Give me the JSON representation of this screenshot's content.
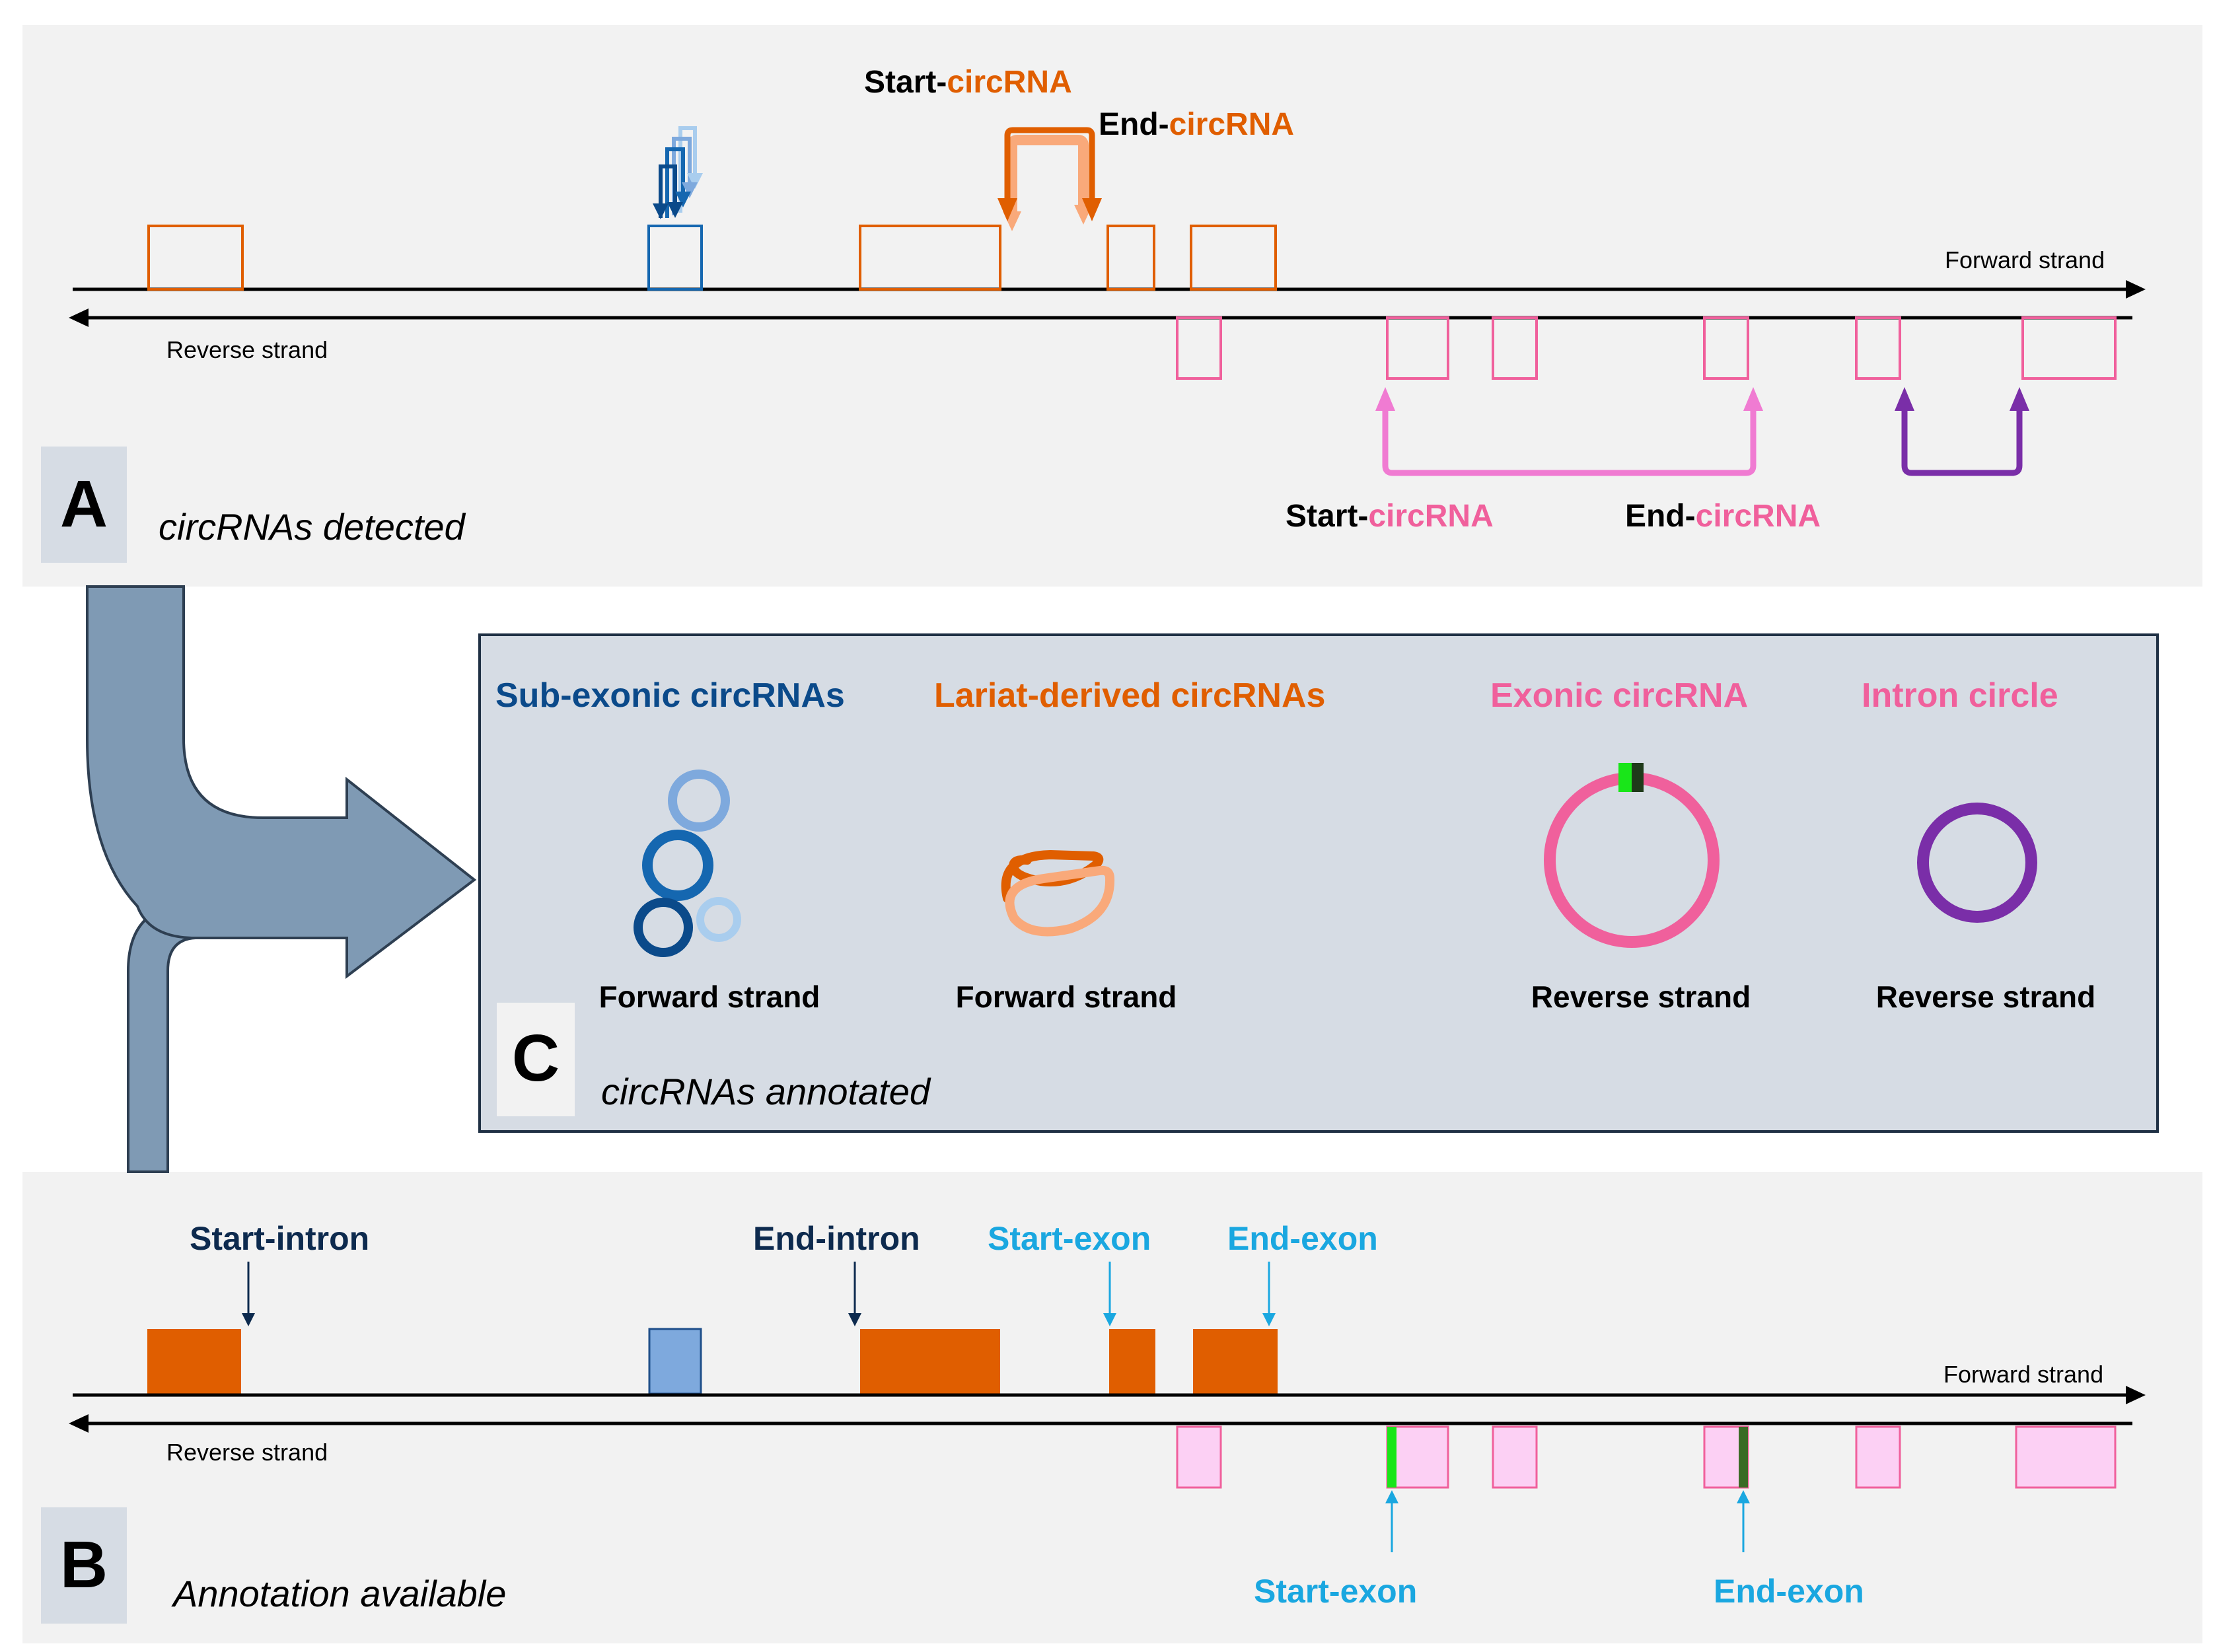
{
  "colors": {
    "panel_bg": "#f2f2f2",
    "panel_c_bg": "#d6dce4",
    "panel_c_border": "#1f3044",
    "letter_box": "#d6dce4",
    "big_arrow": "#7f9ab4",
    "orange": "#e05e00",
    "orange_light": "#f9a97a",
    "pink": "#f0609c",
    "pink_fill": "#fcd0f4",
    "purple": "#7a2ea8",
    "navy": "#0d2a4e",
    "cyan": "#1aa7e0",
    "green": "#19e619",
    "dark_green": "#3a6b25",
    "blue_dark": "#0b4a8a",
    "blue_mid": "#1567b0",
    "blue_light": "#7ea9dd",
    "blue_lighter": "#a9cdee"
  },
  "panel_a": {
    "letter": "A",
    "caption": "circRNAs detected",
    "forward_strand": "Forward strand",
    "reverse_strand": "Reverse strand",
    "start_prefix_top": "Start-",
    "start_circ_top": "circRNA",
    "end_prefix_top": "End-",
    "end_circ_top": "circRNA",
    "start_prefix_bottom": "Start-",
    "start_circ_bottom": "circRNA",
    "end_prefix_bottom": "End-",
    "end_circ_bottom": "circRNA"
  },
  "panel_c": {
    "letter": "C",
    "caption": "circRNAs annotated",
    "categories": [
      {
        "title": "Sub-exonic circRNAs",
        "strand": "Forward strand",
        "icon": "sub-exonic-circles-icon"
      },
      {
        "title": "Lariat-derived circRNAs",
        "strand": "Forward strand",
        "icon": "lariat-icon"
      },
      {
        "title": "Exonic circRNA",
        "strand": "Reverse strand",
        "icon": "exonic-circle-icon"
      },
      {
        "title": "Intron circle",
        "strand": "Reverse strand",
        "icon": "intron-circle-icon"
      }
    ]
  },
  "panel_b": {
    "letter": "B",
    "caption": "Annotation available",
    "forward_strand": "Forward strand",
    "reverse_strand": "Reverse strand",
    "start_intron": "Start-intron",
    "end_intron": "End-intron",
    "start_exon_top": "Start-exon",
    "end_exon_top": "End-exon",
    "start_exon_bottom": "Start-exon",
    "end_exon_bottom": "End-exon"
  }
}
